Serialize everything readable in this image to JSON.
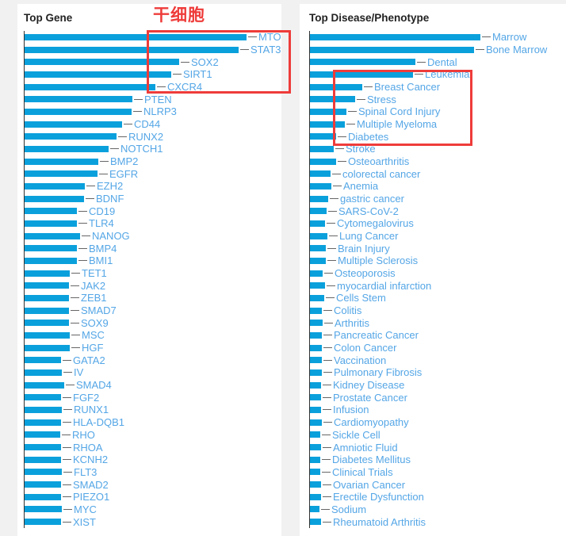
{
  "colors": {
    "bar": "#0aa0dc",
    "label": "#54a6e6",
    "dash": "#666666",
    "axis": "#333333",
    "title": "#222222",
    "annotation": "#ee3c3a",
    "page_background": "#f1f1f1",
    "panel_background": "#ffffff"
  },
  "annotations": {
    "stem_cell_label": "干细胞",
    "highlighted_genes": [
      "MTOR",
      "STAT3",
      "SOX2",
      "SIRT1",
      "CXCR4"
    ],
    "highlighted_diseases": [
      "Leukemia",
      "Breast Cancer",
      "Stress",
      "Spinal Cord Injury",
      "Multiple Myeloma",
      "Diabetes"
    ]
  },
  "chart_data": [
    {
      "type": "bar",
      "orientation": "horizontal",
      "title": "Top Gene",
      "xlabel": "",
      "ylabel": "",
      "grid": false,
      "legend": false,
      "value_note": "no numeric axis shown; values are relative bar lengths in px",
      "categories": [
        "MTOR",
        "STAT3",
        "SOX2",
        "SIRT1",
        "CXCR4",
        "PTEN",
        "NLRP3",
        "CD44",
        "RUNX2",
        "NOTCH1",
        "BMP2",
        "EGFR",
        "EZH2",
        "BDNF",
        "CD19",
        "TLR4",
        "NANOG",
        "BMP4",
        "BMI1",
        "TET1",
        "JAK2",
        "ZEB1",
        "SMAD7",
        "SOX9",
        "MSC",
        "HGF",
        "GATA2",
        "IV",
        "SMAD4",
        "FGF2",
        "RUNX1",
        "HLA-DQB1",
        "RHO",
        "RHOA",
        "KCNH2",
        "FLT3",
        "SMAD2",
        "PIEZO1",
        "MYC",
        "XIST"
      ],
      "values": [
        280,
        270,
        195,
        185,
        165,
        136,
        135,
        123,
        116,
        106,
        93,
        92,
        76,
        75,
        66,
        66,
        70,
        66,
        66,
        57,
        56,
        56,
        56,
        56,
        57,
        57,
        46,
        47,
        50,
        46,
        47,
        46,
        45,
        46,
        46,
        47,
        46,
        46,
        47,
        46
      ]
    },
    {
      "type": "bar",
      "orientation": "horizontal",
      "title": "Top Disease/Phenotype",
      "xlabel": "",
      "ylabel": "",
      "grid": false,
      "legend": false,
      "value_note": "no numeric axis shown; values are relative bar lengths in px",
      "categories": [
        "Marrow",
        "Bone Marrow",
        "Dental",
        "Leukemia",
        "Breast Cancer",
        "Stress",
        "Spinal Cord Injury",
        "Multiple Myeloma",
        "Diabetes",
        "Stroke",
        "Osteoarthritis",
        "colorectal cancer",
        "Anemia",
        "gastric cancer",
        "SARS-CoV-2",
        "Cytomegalovirus",
        "Lung Cancer",
        "Brain Injury",
        "Multiple Sclerosis",
        "Osteoporosis",
        "myocardial infarction",
        "Cells Stem",
        "Colitis",
        "Arthritis",
        "Pancreatic Cancer",
        "Colon Cancer",
        "Vaccination",
        "Pulmonary Fibrosis",
        "Kidney Disease",
        "Prostate Cancer",
        "Infusion",
        "Cardiomyopathy",
        "Sickle Cell",
        "Amniotic Fluid",
        "Diabetes Mellitus",
        "Clinical Trials",
        "Ovarian Cancer",
        "Erectile Dysfunction",
        "Sodium",
        "Rheumatoid Arthritis"
      ],
      "values": [
        215,
        207,
        133,
        130,
        66,
        57,
        46,
        44,
        33,
        30,
        33,
        26,
        27,
        23,
        21,
        19,
        22,
        20,
        20,
        16,
        19,
        18,
        15,
        16,
        15,
        15,
        15,
        15,
        14,
        14,
        14,
        15,
        13,
        14,
        13,
        13,
        14,
        14,
        12,
        14
      ]
    }
  ]
}
